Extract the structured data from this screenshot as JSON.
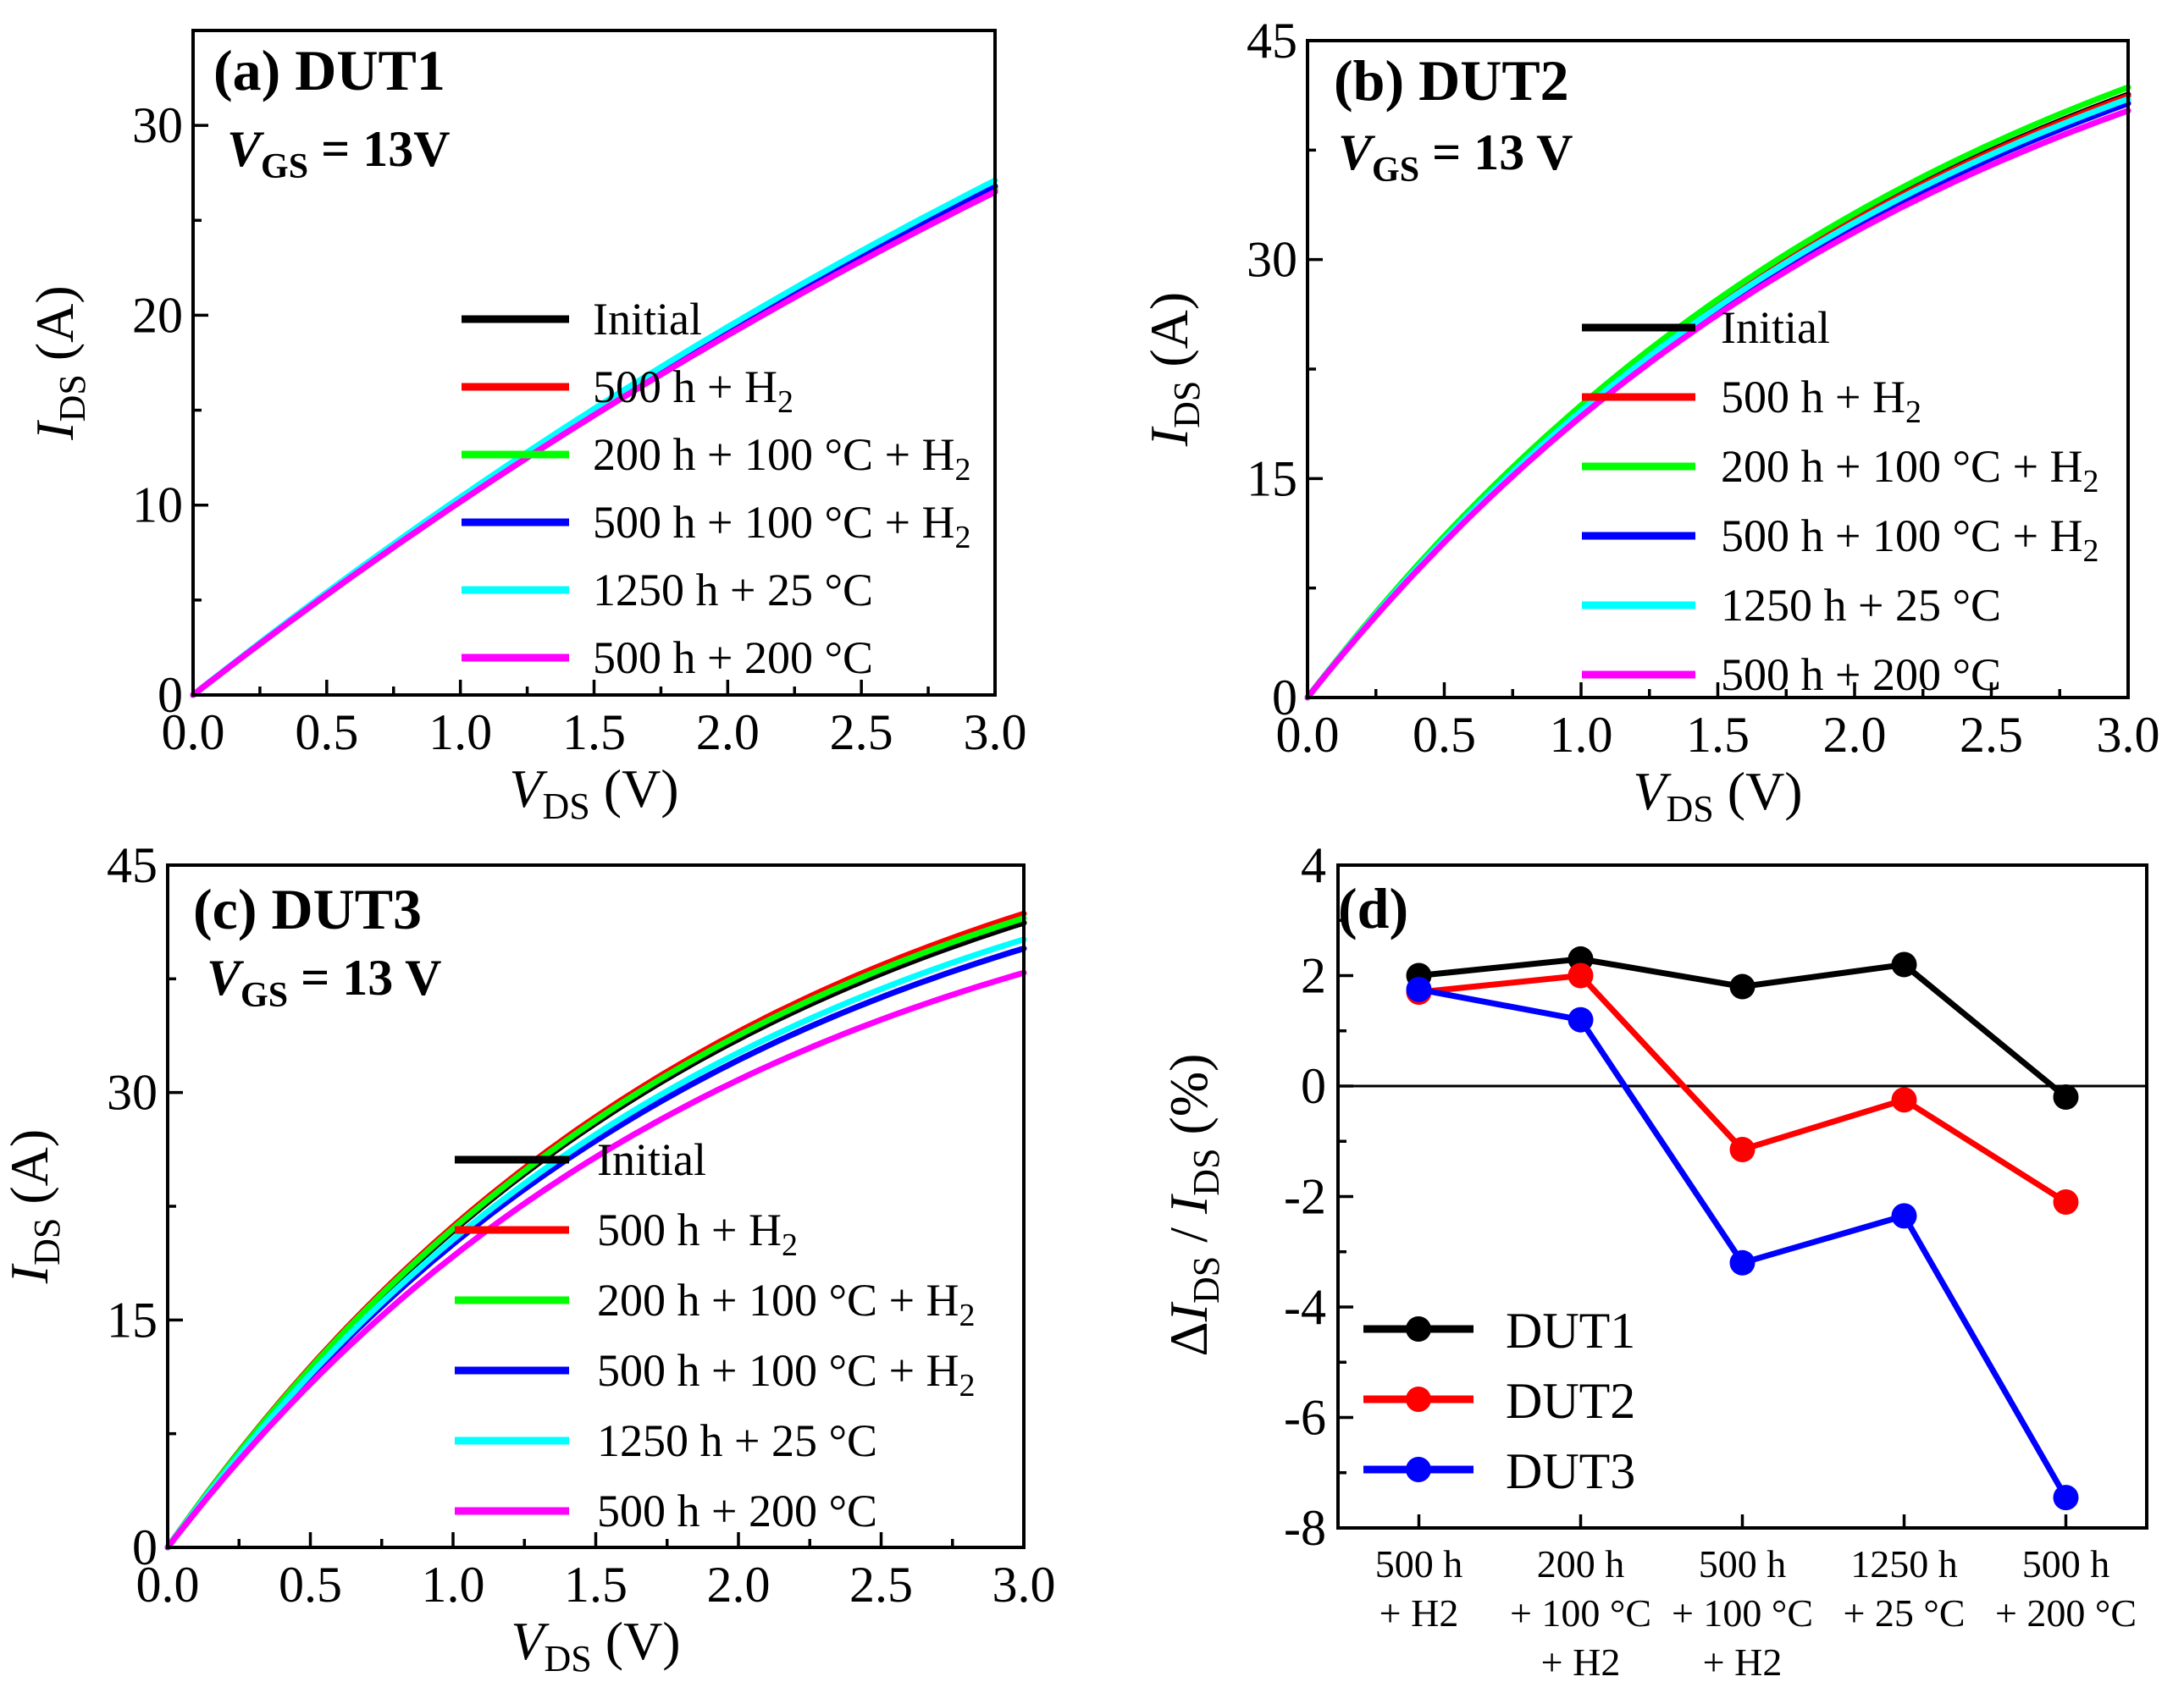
{
  "chart_data": [
    {
      "id": "a",
      "type": "line",
      "panel_label": "(a)",
      "title": "DUT1",
      "condition": {
        "var": "V",
        "sub": "GS",
        "text": " = 13V"
      },
      "xlabel": {
        "var": "V",
        "sub": "DS",
        "unit": " (V)"
      },
      "ylabel": {
        "var": "I",
        "sub": "DS",
        "unit": " (A)"
      },
      "xlim": [
        0,
        3.0
      ],
      "ylim": [
        0,
        35
      ],
      "xticks": [
        "0.0",
        "0.5",
        "1.0",
        "1.5",
        "2.0",
        "2.5",
        "3.0"
      ],
      "xtick_values": [
        0,
        0.5,
        1.0,
        1.5,
        2.0,
        2.5,
        3.0
      ],
      "yticks": [
        "0",
        "10",
        "20",
        "30"
      ],
      "ytick_values": [
        0,
        10,
        20,
        30
      ],
      "legend_position": "right",
      "legend": [
        {
          "text": "Initial",
          "sub": "",
          "color": "#000000"
        },
        {
          "text": "500 h + H",
          "sub": "2",
          "color": "#ff0000"
        },
        {
          "text": "200 h + 100 °C + H",
          "sub": "2",
          "color": "#00ff00"
        },
        {
          "text": "500 h + 100 °C + H",
          "sub": "2",
          "color": "#0000ff"
        },
        {
          "text": "1250 h + 25 °C",
          "sub": "",
          "color": "#00ffff"
        },
        {
          "text": "500 h + 200 °C",
          "sub": "",
          "color": "#ff00ff"
        }
      ],
      "series": [
        {
          "name": "Initial",
          "color": "#000000",
          "end_value": 26.5
        },
        {
          "name": "500 h + H2",
          "color": "#ff0000",
          "end_value": 26.6
        },
        {
          "name": "200 h + 100 °C + H2",
          "color": "#00ff00",
          "end_value": 26.7
        },
        {
          "name": "500 h + 100 °C + H2",
          "color": "#0000ff",
          "end_value": 26.8
        },
        {
          "name": "1250 h + 25 °C",
          "color": "#00ffff",
          "end_value": 27.1
        },
        {
          "name": "500 h + 200 °C",
          "color": "#ff00ff",
          "end_value": 26.5
        }
      ],
      "curve_shape": 0.15
    },
    {
      "id": "b",
      "type": "line",
      "panel_label": "(b)",
      "title": "DUT2",
      "condition": {
        "var": "V",
        "sub": "GS",
        "text": " = 13 V"
      },
      "xlabel": {
        "var": "V",
        "sub": "DS",
        "unit": " (V)"
      },
      "ylabel": {
        "var": "I",
        "sub": "DS",
        "unit": " (A)"
      },
      "xlim": [
        0,
        3.0
      ],
      "ylim": [
        0,
        45
      ],
      "xticks": [
        "0.0",
        "0.5",
        "1.0",
        "1.5",
        "2.0",
        "2.5",
        "3.0"
      ],
      "xtick_values": [
        0,
        0.5,
        1.0,
        1.5,
        2.0,
        2.5,
        3.0
      ],
      "yticks": [
        "0",
        "15",
        "30",
        "45"
      ],
      "ytick_values": [
        0,
        15,
        30,
        45
      ],
      "legend_position": "right",
      "legend": [
        {
          "text": "Initial",
          "sub": "",
          "color": "#000000"
        },
        {
          "text": "500 h + H",
          "sub": "2",
          "color": "#ff0000"
        },
        {
          "text": "200 h + 100 °C + H",
          "sub": "2",
          "color": "#00ff00"
        },
        {
          "text": "500 h + 100 °C + H",
          "sub": "2",
          "color": "#0000ff"
        },
        {
          "text": "1250 h + 25 °C",
          "sub": "",
          "color": "#00ffff"
        },
        {
          "text": "500 h + 200 °C",
          "sub": "",
          "color": "#ff00ff"
        }
      ],
      "series": [
        {
          "name": "Initial",
          "color": "#000000",
          "end_value": 41.3
        },
        {
          "name": "500 h + H2",
          "color": "#ff0000",
          "end_value": 41.2
        },
        {
          "name": "200 h + 100 °C + H2",
          "color": "#00ff00",
          "end_value": 41.8
        },
        {
          "name": "500 h + 100 °C + H2",
          "color": "#0000ff",
          "end_value": 40.7
        },
        {
          "name": "1250 h + 25 °C",
          "color": "#00ffff",
          "end_value": 41.0
        },
        {
          "name": "500 h + 200 °C",
          "color": "#ff00ff",
          "end_value": 40.2
        }
      ],
      "curve_shape": 0.42
    },
    {
      "id": "c",
      "type": "line",
      "panel_label": "(c)",
      "title": "DUT3",
      "condition": {
        "var": "V",
        "sub": "GS",
        "text": " = 13 V"
      },
      "xlabel": {
        "var": "V",
        "sub": "DS",
        "unit": " (V)"
      },
      "ylabel": {
        "var": "I",
        "sub": "DS",
        "unit": " (A)"
      },
      "xlim": [
        0,
        3.0
      ],
      "ylim": [
        0,
        45
      ],
      "xticks": [
        "0.0",
        "0.5",
        "1.0",
        "1.5",
        "2.0",
        "2.5",
        "3.0"
      ],
      "xtick_values": [
        0,
        0.5,
        1.0,
        1.5,
        2.0,
        2.5,
        3.0
      ],
      "yticks": [
        "0",
        "15",
        "30",
        "45"
      ],
      "ytick_values": [
        0,
        15,
        30,
        45
      ],
      "legend_position": "right",
      "legend": [
        {
          "text": "Initial",
          "sub": "",
          "color": "#000000"
        },
        {
          "text": "500 h + H",
          "sub": "2",
          "color": "#ff0000"
        },
        {
          "text": "200 h + 100 °C + H",
          "sub": "2",
          "color": "#00ff00"
        },
        {
          "text": "500 h + 100 °C + H",
          "sub": "2",
          "color": "#0000ff"
        },
        {
          "text": "1250 h + 25 °C",
          "sub": "",
          "color": "#00ffff"
        },
        {
          "text": "500 h + 200 °C",
          "sub": "",
          "color": "#ff00ff"
        }
      ],
      "series": [
        {
          "name": "Initial",
          "color": "#000000",
          "end_value": 41.2
        },
        {
          "name": "500 h + H2",
          "color": "#ff0000",
          "end_value": 41.8
        },
        {
          "name": "200 h + 100 °C + H2",
          "color": "#00ff00",
          "end_value": 41.5
        },
        {
          "name": "500 h + 100 °C + H2",
          "color": "#0000ff",
          "end_value": 39.5
        },
        {
          "name": "1250 h + 25 °C",
          "color": "#00ffff",
          "end_value": 40.1
        },
        {
          "name": "500 h + 200 °C",
          "color": "#ff00ff",
          "end_value": 37.9
        }
      ],
      "curve_shape": 0.5
    },
    {
      "id": "d",
      "type": "line",
      "panel_label": "(d)",
      "title": "",
      "ylabel": {
        "prefix": "Δ",
        "var": "I",
        "sub": "DS",
        "mid": " / ",
        "var2": "I",
        "sub2": "DS",
        "unit": " (%)"
      },
      "ylim": [
        -8,
        4
      ],
      "yticks": [
        "-8",
        "-6",
        "-4",
        "-2",
        "0",
        "2",
        "4"
      ],
      "ytick_values": [
        -8,
        -6,
        -4,
        -2,
        0,
        2,
        4
      ],
      "reference_line": 0,
      "categories": [
        [
          "500 h",
          "+ H2"
        ],
        [
          "200 h",
          "+ 100 °C",
          "+ H2"
        ],
        [
          "500 h",
          "+ 100 °C",
          "+ H2"
        ],
        [
          "1250 h",
          "+ 25 °C"
        ],
        [
          "500 h",
          "+ 200 °C"
        ]
      ],
      "legend_position": "bottom-left",
      "series": [
        {
          "name": "DUT1",
          "color": "#000000",
          "values": [
            2.0,
            2.3,
            1.8,
            2.2,
            -0.2
          ]
        },
        {
          "name": "DUT2",
          "color": "#ff0000",
          "values": [
            1.7,
            2.0,
            -1.15,
            -0.25,
            -2.1
          ]
        },
        {
          "name": "DUT3",
          "color": "#0000ff",
          "values": [
            1.75,
            1.2,
            -3.2,
            -2.35,
            -7.45
          ]
        }
      ]
    }
  ]
}
